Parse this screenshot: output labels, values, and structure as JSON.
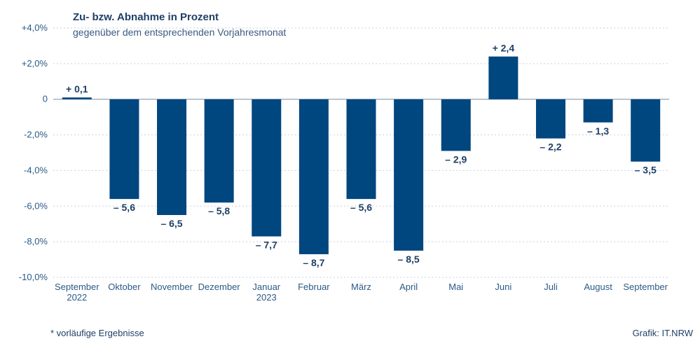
{
  "chart_data": {
    "type": "bar",
    "title": "Zu- bzw. Abnahme in Prozent",
    "subtitle": "gegenüber dem entsprechenden Vorjahresmonat",
    "categories": [
      [
        "September",
        "2022"
      ],
      [
        "Oktober"
      ],
      [
        "November"
      ],
      [
        "Dezember"
      ],
      [
        "Januar",
        "2023"
      ],
      [
        "Februar"
      ],
      [
        "März"
      ],
      [
        "April"
      ],
      [
        "Mai"
      ],
      [
        "Juni"
      ],
      [
        "Juli"
      ],
      [
        "August"
      ],
      [
        "September"
      ]
    ],
    "values": [
      0.1,
      -5.6,
      -6.5,
      -5.8,
      -7.7,
      -8.7,
      -5.6,
      -8.5,
      -2.9,
      2.4,
      -2.2,
      -1.3,
      -3.5
    ],
    "value_labels": [
      "+ 0,1",
      "– 5,6",
      "– 6,5",
      "– 5,8",
      "– 7,7",
      "– 8,7",
      "– 5,6",
      "– 8,5",
      "– 2,9",
      "+ 2,4",
      "– 2,2",
      "– 1,3",
      "– 3,5"
    ],
    "yticks": [
      4,
      2,
      0,
      -2,
      -4,
      -6,
      -8,
      -10
    ],
    "ytick_labels": [
      "+4,0%",
      "+2,0%",
      "0",
      "-2,0%",
      "-4,0%",
      "-6,0%",
      "-8,0%",
      "-10,0%"
    ],
    "ylim": [
      -10,
      4
    ],
    "grid": true,
    "bar_color": "#00467f"
  },
  "footer": {
    "footnote": "* vorläufige Ergebnisse",
    "credit": "Grafik: IT.NRW"
  }
}
